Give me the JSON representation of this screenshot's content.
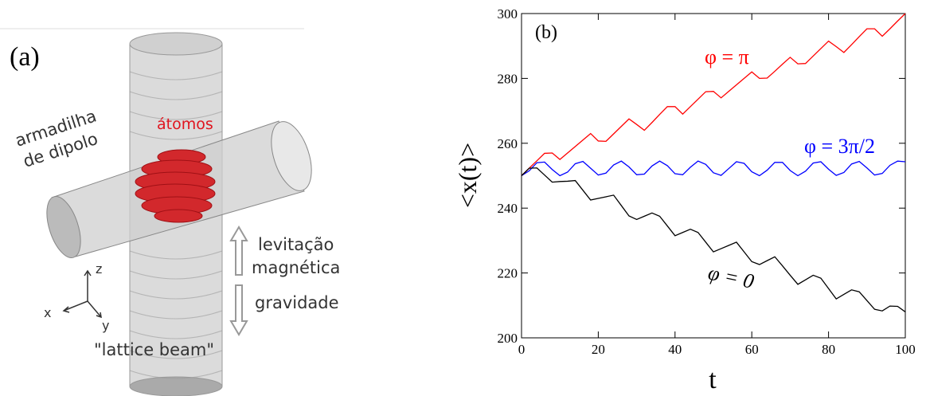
{
  "diagram": {
    "panel_label": "(a)",
    "trap_label": [
      "armadilha",
      "de dipolo"
    ],
    "atoms_label": "átomos",
    "levitation_label": [
      "levitação",
      "magnética"
    ],
    "gravity_label": "gravidade",
    "beam_label": "\"lattice beam\"",
    "axes": {
      "z": "z",
      "x": "x",
      "y": "y"
    }
  },
  "chart_data": {
    "type": "line",
    "panel_label": "(b)",
    "xlabel": "t",
    "ylabel": "<x(t)>",
    "x": [
      0,
      2,
      4,
      6,
      8,
      10,
      12,
      14,
      16,
      18,
      20,
      22,
      24,
      26,
      28,
      30,
      32,
      34,
      36,
      38,
      40,
      42,
      44,
      46,
      48,
      50,
      52,
      54,
      56,
      58,
      60,
      62,
      64,
      66,
      68,
      70,
      72,
      74,
      76,
      78,
      80,
      82,
      84,
      86,
      88,
      90,
      92,
      94,
      96,
      98,
      100
    ],
    "xlim": [
      0,
      100
    ],
    "xticks": [
      0,
      20,
      40,
      60,
      80,
      100
    ],
    "ylim": [
      200,
      300
    ],
    "yticks": [
      200,
      220,
      240,
      260,
      280,
      300
    ],
    "series": [
      {
        "name": "φ = π",
        "color": "#ff0000",
        "values": [
          250,
          252.3,
          254.6,
          256.9,
          257,
          255,
          257,
          259,
          261,
          263,
          260.7,
          260.6,
          262.9,
          265.2,
          267.5,
          265.8,
          264,
          266.4,
          268.9,
          271.3,
          271.3,
          269,
          271.3,
          273.6,
          275.9,
          276,
          274,
          276,
          278,
          280,
          282,
          280,
          280.1,
          282.2,
          284.4,
          286.5,
          284.5,
          284.6,
          286.9,
          289.2,
          291.5,
          289.8,
          288,
          290.4,
          292.9,
          295.3,
          295.3,
          293,
          295.3,
          297.7,
          300
        ]
      },
      {
        "name": "φ = 3π/2",
        "color": "#0000ff",
        "values": [
          250,
          251.5,
          254,
          254.2,
          251.9,
          250,
          251.1,
          253.7,
          254.4,
          252.3,
          250.2,
          250.8,
          253.3,
          254.5,
          252.7,
          250.3,
          250.5,
          253,
          254.5,
          253.1,
          250.6,
          250.3,
          252.6,
          254.5,
          253.5,
          250.9,
          250.1,
          252.2,
          254.3,
          253.8,
          251.2,
          250,
          251.7,
          254.1,
          254.1,
          251.6,
          250,
          251.4,
          253.9,
          254.3,
          252,
          250.1,
          251,
          253.6,
          254.4,
          252.4,
          250.2,
          250.7,
          253.2,
          254.5,
          254.3
        ]
      },
      {
        "name": "φ = 0",
        "color": "#000000",
        "values": [
          250,
          252.3,
          252.4,
          250.2,
          248,
          248.2,
          248.3,
          248.5,
          245.5,
          242.5,
          243,
          243.5,
          244,
          240.8,
          237.6,
          236.5,
          237.5,
          238.5,
          237.5,
          234.5,
          231.5,
          232.5,
          233.5,
          232.5,
          229.5,
          226.5,
          227.5,
          228.5,
          229.5,
          226.5,
          223.5,
          222.6,
          223.8,
          225,
          222.2,
          219.3,
          216.5,
          217.9,
          219.3,
          218.4,
          215.2,
          212,
          213.4,
          214.8,
          214.2,
          211.5,
          208.8,
          208.3,
          209.8,
          209.7,
          208
        ]
      }
    ]
  }
}
